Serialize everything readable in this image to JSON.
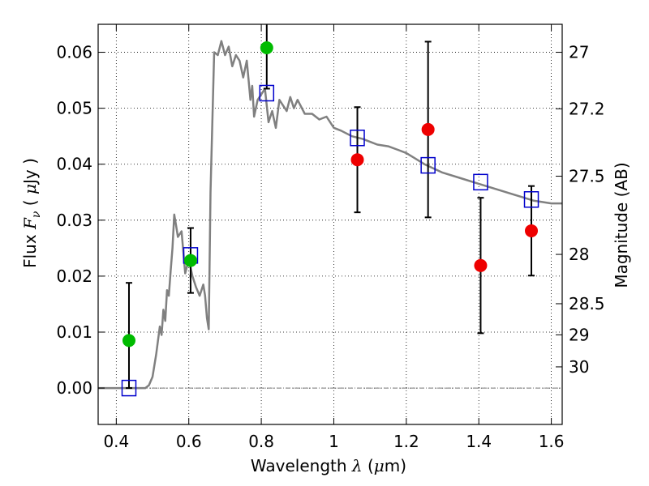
{
  "chart_data": {
    "type": "scatter",
    "xlabel": {
      "text": "Wavelength",
      "symbol": "λ",
      "unit_open": "(",
      "unit_mu": "μ",
      "unit_rest": "m)"
    },
    "ylabel": {
      "text": "Flux",
      "symbol": "F",
      "sub": "ν",
      "unit_open": "(",
      "unit_mu": "μ",
      "unit_rest": "Jy )"
    },
    "y2label": "Magnitude (AB)",
    "xlim": [
      0.35,
      1.63
    ],
    "ylim": [
      -0.0065,
      0.065
    ],
    "grid": true,
    "x_ticks": [
      {
        "value": 0.4,
        "label": "0.4"
      },
      {
        "value": 0.6,
        "label": "0.6"
      },
      {
        "value": 0.8,
        "label": "0.8"
      },
      {
        "value": 1.0,
        "label": "1"
      },
      {
        "value": 1.2,
        "label": "1.2"
      },
      {
        "value": 1.4,
        "label": "1.4"
      },
      {
        "value": 1.6,
        "label": "1.6"
      }
    ],
    "y_ticks": [
      {
        "value": 0.0,
        "label": "0.00"
      },
      {
        "value": 0.01,
        "label": "0.01"
      },
      {
        "value": 0.02,
        "label": "0.02"
      },
      {
        "value": 0.03,
        "label": "0.03"
      },
      {
        "value": 0.04,
        "label": "0.04"
      },
      {
        "value": 0.05,
        "label": "0.05"
      },
      {
        "value": 0.06,
        "label": "0.06"
      }
    ],
    "y2_ticks": [
      {
        "value": 27,
        "label": "27"
      },
      {
        "value": 27.2,
        "label": "27.2"
      },
      {
        "value": 27.5,
        "label": "27.5"
      },
      {
        "value": 28,
        "label": "28"
      },
      {
        "value": 28.5,
        "label": "28.5"
      },
      {
        "value": 29,
        "label": "29"
      },
      {
        "value": 30,
        "label": "30"
      }
    ],
    "zero_line": 0.0,
    "colors": {
      "model_line": "#808080",
      "model_squares": "#0000cc",
      "green_points": "#00bb00",
      "red_points": "#ee0000",
      "errorbars": "#000000",
      "grid": "#000000",
      "zero_line": "#777777"
    },
    "series": [
      {
        "kind": "model_sed",
        "x": [
          0.35,
          0.48,
          0.49,
          0.5,
          0.51,
          0.52,
          0.525,
          0.53,
          0.535,
          0.54,
          0.545,
          0.55,
          0.555,
          0.56,
          0.565,
          0.57,
          0.58,
          0.59,
          0.6,
          0.61,
          0.62,
          0.63,
          0.64,
          0.645,
          0.65,
          0.655,
          0.66,
          0.67,
          0.68,
          0.69,
          0.7,
          0.71,
          0.72,
          0.73,
          0.74,
          0.75,
          0.76,
          0.77,
          0.775,
          0.78,
          0.79,
          0.8,
          0.81,
          0.82,
          0.83,
          0.84,
          0.85,
          0.86,
          0.87,
          0.88,
          0.89,
          0.9,
          0.92,
          0.94,
          0.96,
          0.98,
          1.0,
          1.02,
          1.05,
          1.08,
          1.1,
          1.12,
          1.15,
          1.18,
          1.2,
          1.25,
          1.3,
          1.35,
          1.4,
          1.45,
          1.5,
          1.55,
          1.6,
          1.63
        ],
        "y": [
          0.0,
          0.0,
          0.0005,
          0.002,
          0.006,
          0.011,
          0.0095,
          0.014,
          0.012,
          0.0175,
          0.0165,
          0.021,
          0.025,
          0.031,
          0.029,
          0.027,
          0.028,
          0.0205,
          0.023,
          0.02,
          0.018,
          0.0165,
          0.0185,
          0.0165,
          0.0125,
          0.0105,
          0.035,
          0.06,
          0.0595,
          0.062,
          0.0595,
          0.061,
          0.0575,
          0.0595,
          0.0585,
          0.0555,
          0.0585,
          0.0515,
          0.054,
          0.0485,
          0.0515,
          0.0525,
          0.0535,
          0.0475,
          0.0495,
          0.0465,
          0.0515,
          0.0505,
          0.0495,
          0.052,
          0.05,
          0.0515,
          0.049,
          0.049,
          0.048,
          0.0485,
          0.0465,
          0.046,
          0.045,
          0.0445,
          0.044,
          0.0435,
          0.0432,
          0.0425,
          0.042,
          0.04,
          0.0385,
          0.0375,
          0.0365,
          0.0355,
          0.0345,
          0.0335,
          0.033,
          0.033
        ]
      },
      {
        "kind": "model_squares",
        "x": [
          0.435,
          0.605,
          0.815,
          1.065,
          1.26,
          1.405,
          1.545
        ],
        "y": [
          0.0,
          0.0237,
          0.0527,
          0.0447,
          0.0398,
          0.0368,
          0.0337
        ]
      },
      {
        "kind": "green_points",
        "x": [
          0.435,
          0.605,
          0.815
        ],
        "y": [
          0.0085,
          0.0228,
          0.0608
        ],
        "yerr_low": [
          0.0085,
          0.0058,
          0.0
        ],
        "yerr_high": [
          0.0103,
          0.0058,
          0.0
        ]
      },
      {
        "kind": "red_points",
        "x": [
          1.065,
          1.26,
          1.405,
          1.545
        ],
        "y": [
          0.0408,
          0.0462,
          0.0219,
          0.0281
        ],
        "yerr_low": [
          0.0094,
          0.0157,
          0.0121,
          0.008
        ],
        "yerr_high": [
          0.0094,
          0.0157,
          0.0121,
          0.008
        ]
      }
    ],
    "extra_errorbar": {
      "x": 0.815,
      "y_low": 0.0535,
      "y_high": 0.065
    }
  }
}
